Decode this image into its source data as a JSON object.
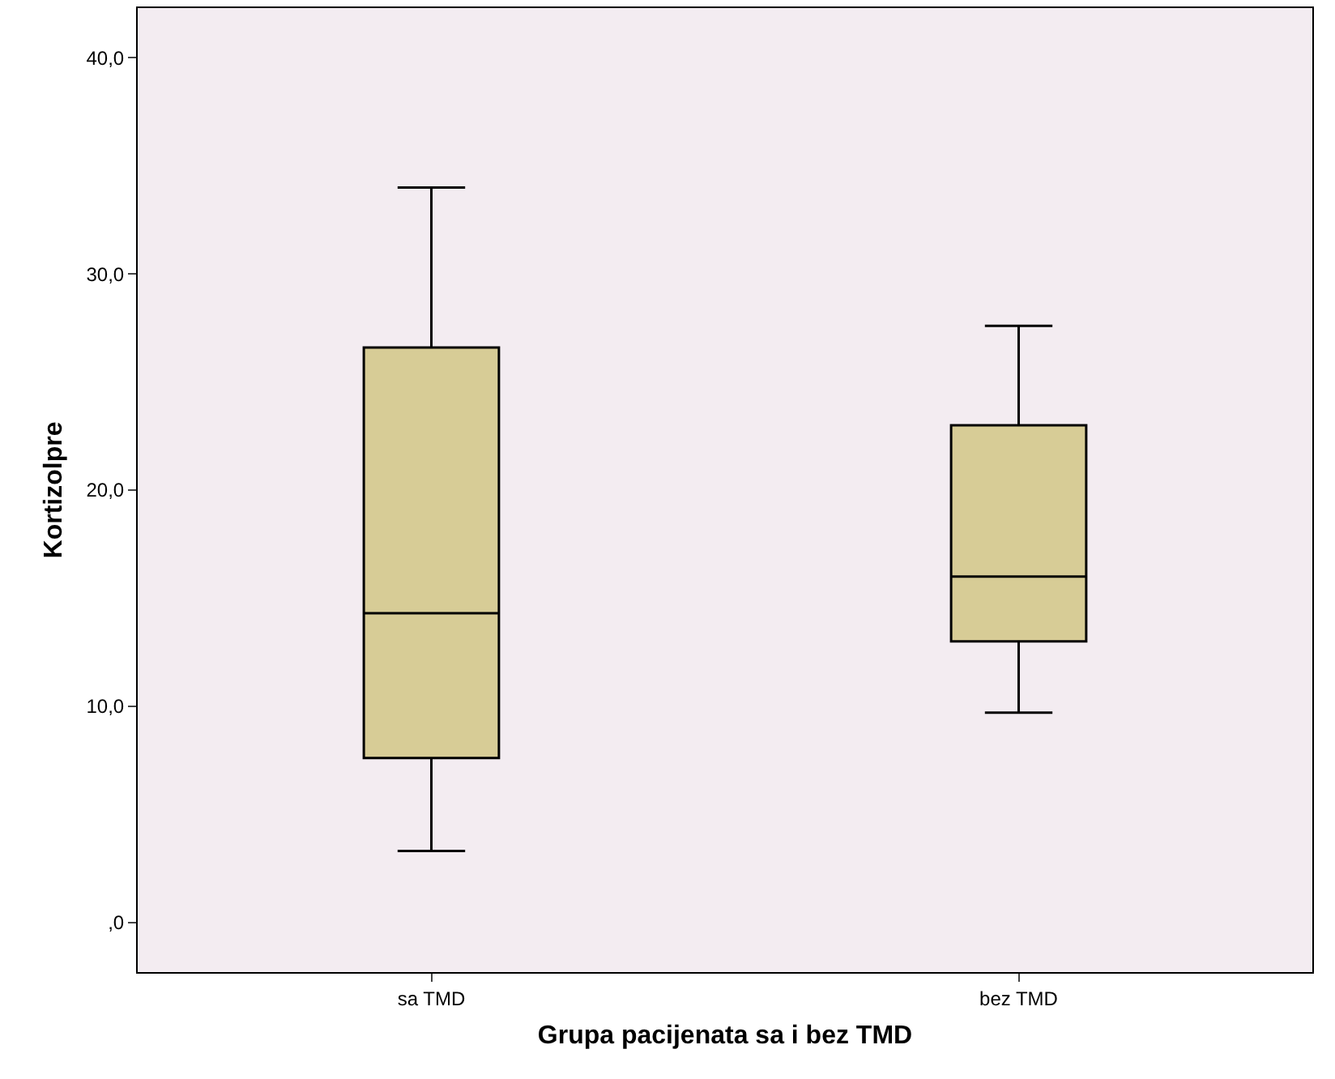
{
  "chart_data": {
    "type": "box",
    "xlabel": "Grupa pacijenata sa i bez TMD",
    "ylabel": "Kortizolpre",
    "categories": [
      "sa TMD",
      "bez TMD"
    ],
    "boxes": [
      {
        "low": 3.3,
        "q1": 7.6,
        "median": 14.3,
        "q3": 26.6,
        "high": 34.0
      },
      {
        "low": 9.7,
        "q1": 13.0,
        "median": 16.0,
        "q3": 23.0,
        "high": 27.6
      }
    ],
    "color": "#d7cc96",
    "ylim": [
      -2.3,
      42.3
    ],
    "yticks": [
      {
        "value": 0,
        "label": ",0"
      },
      {
        "value": 10,
        "label": "10,0"
      },
      {
        "value": 20,
        "label": "20,0"
      },
      {
        "value": 30,
        "label": "30,0"
      },
      {
        "value": 40,
        "label": "40,0"
      }
    ],
    "grid": false
  }
}
